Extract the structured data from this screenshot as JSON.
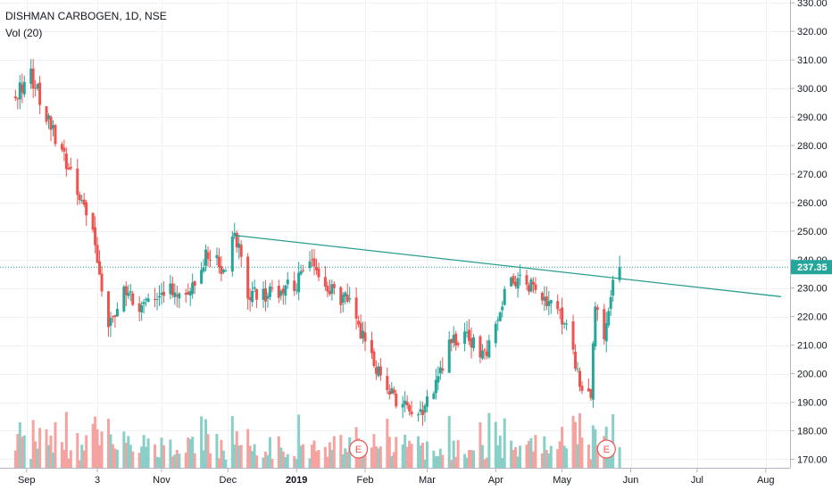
{
  "header": {
    "symbol_line": "DISHMAN CARBOGEN, 1D, NSE",
    "volume_label": "Vol (20)"
  },
  "colors": {
    "up": "#26a69a",
    "down": "#ef5350",
    "up_volume": "#89cfc7",
    "down_volume": "#f5a3a1",
    "trendline": "#2a9d8f",
    "price_line": "#26a69a",
    "price_badge": "#26a69a",
    "grid": "#eef1f5",
    "earnings_marker": "#ef5350"
  },
  "earnings_markers": [
    "E",
    "E"
  ],
  "chart_data": {
    "type": "candlestick",
    "title": "DISHMAN CARBOGEN, 1D, NSE",
    "indicator": "Vol (20)",
    "y_axis": {
      "ticks": [
        "170.00",
        "180.00",
        "190.00",
        "200.00",
        "210.00",
        "220.00",
        "230.00",
        "240.00",
        "250.00",
        "260.00",
        "270.00",
        "280.00",
        "290.00",
        "300.00",
        "310.00",
        "320.00",
        "330.00"
      ],
      "range": [
        167,
        331
      ]
    },
    "x_axis": {
      "ticks": [
        "Sep",
        "3",
        "Nov",
        "Dec",
        "2019",
        "Feb",
        "Mar",
        "Apr",
        "May",
        "Jun",
        "Jul",
        "Aug"
      ]
    },
    "last_price": "237.35",
    "trendline": {
      "start": {
        "date": "2018-12-04",
        "price": 248.5
      },
      "end": {
        "date": "2019-08-08",
        "price": 227
      }
    },
    "price_anchors": [
      {
        "date": "2018-08-27",
        "price": 298
      },
      {
        "date": "2018-09-03",
        "price": 305
      },
      {
        "date": "2018-09-10",
        "price": 290
      },
      {
        "date": "2018-09-20",
        "price": 272
      },
      {
        "date": "2018-10-01",
        "price": 250
      },
      {
        "date": "2018-10-08",
        "price": 215
      },
      {
        "date": "2018-10-15",
        "price": 230
      },
      {
        "date": "2018-10-22",
        "price": 222
      },
      {
        "date": "2018-11-01",
        "price": 230
      },
      {
        "date": "2018-11-12",
        "price": 228
      },
      {
        "date": "2018-11-22",
        "price": 242
      },
      {
        "date": "2018-11-30",
        "price": 236
      },
      {
        "date": "2018-12-04",
        "price": 250
      },
      {
        "date": "2018-12-10",
        "price": 228
      },
      {
        "date": "2018-12-20",
        "price": 228
      },
      {
        "date": "2019-01-01",
        "price": 232
      },
      {
        "date": "2019-01-08",
        "price": 240
      },
      {
        "date": "2019-01-15",
        "price": 230
      },
      {
        "date": "2019-01-25",
        "price": 225
      },
      {
        "date": "2019-02-04",
        "price": 205
      },
      {
        "date": "2019-02-12",
        "price": 193
      },
      {
        "date": "2019-02-25",
        "price": 185
      },
      {
        "date": "2019-03-05",
        "price": 195
      },
      {
        "date": "2019-03-12",
        "price": 212
      },
      {
        "date": "2019-03-20",
        "price": 213
      },
      {
        "date": "2019-03-28",
        "price": 205
      },
      {
        "date": "2019-04-01",
        "price": 220
      },
      {
        "date": "2019-04-08",
        "price": 233
      },
      {
        "date": "2019-04-18",
        "price": 230
      },
      {
        "date": "2019-04-26",
        "price": 225
      },
      {
        "date": "2019-05-03",
        "price": 218
      },
      {
        "date": "2019-05-09",
        "price": 198
      },
      {
        "date": "2019-05-14",
        "price": 192
      },
      {
        "date": "2019-05-16",
        "price": 225
      },
      {
        "date": "2019-05-20",
        "price": 210
      },
      {
        "date": "2019-05-23",
        "price": 228
      },
      {
        "date": "2019-05-27",
        "price": 237.35
      }
    ]
  }
}
